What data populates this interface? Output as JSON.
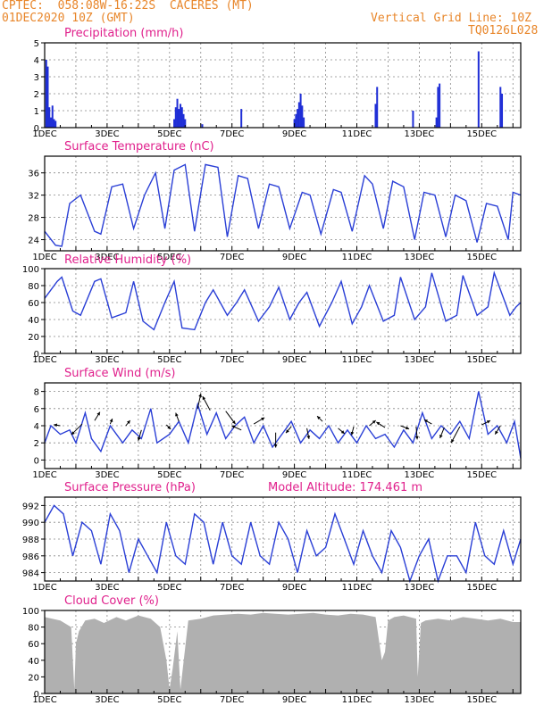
{
  "header": {
    "line1": "CPTEC:  058:08W-16:22S  CACERES (MT)",
    "line2": "01DEC2020 10Z (GMT)",
    "grid_note": "Vertical Grid Line: 10Z",
    "code": "TQ0126L028"
  },
  "colors": {
    "header": "#e8862a",
    "title": "#e0208c",
    "line": "#2a3fd6",
    "bar": "#1f2ed6",
    "cloud": "#b0b0b0",
    "arrow": "#000000"
  },
  "x_ticks": [
    "1DEC",
    "3DEC",
    "5DEC",
    "7DEC",
    "9DEC",
    "11DEC",
    "13DEC",
    "15DEC"
  ],
  "x_range_days": [
    0,
    15.25
  ],
  "chart_data": [
    {
      "type": "bar",
      "title": "Precipitation (mm/h)",
      "ylim": [
        0,
        5
      ],
      "yticks": [
        0,
        1,
        2,
        3,
        4,
        5
      ],
      "points": [
        [
          0.05,
          4
        ],
        [
          0.1,
          3.6
        ],
        [
          0.15,
          1.2
        ],
        [
          0.2,
          0.6
        ],
        [
          0.25,
          1.3
        ],
        [
          0.3,
          0.5
        ],
        [
          0.35,
          0.4
        ],
        [
          4.15,
          0.5
        ],
        [
          4.2,
          1.2
        ],
        [
          4.25,
          1.7
        ],
        [
          4.3,
          1.1
        ],
        [
          4.35,
          1.4
        ],
        [
          4.4,
          1.2
        ],
        [
          4.45,
          0.8
        ],
        [
          4.5,
          0.5
        ],
        [
          5.05,
          0.2
        ],
        [
          6.3,
          1.1
        ],
        [
          8.0,
          0.5
        ],
        [
          8.05,
          0.8
        ],
        [
          8.1,
          1.1
        ],
        [
          8.15,
          1.5
        ],
        [
          8.2,
          2.0
        ],
        [
          8.25,
          1.3
        ],
        [
          8.3,
          0.6
        ],
        [
          10.6,
          1.4
        ],
        [
          10.65,
          2.4
        ],
        [
          11.8,
          1.0
        ],
        [
          12.55,
          0.6
        ],
        [
          12.6,
          2.4
        ],
        [
          12.65,
          2.6
        ],
        [
          13.9,
          4.5
        ],
        [
          14.6,
          2.4
        ],
        [
          14.65,
          2.0
        ]
      ]
    },
    {
      "type": "line",
      "title": "Surface Temperature (nC)",
      "ylim": [
        22,
        39
      ],
      "yticks": [
        24,
        28,
        32,
        36
      ],
      "x": [
        0,
        0.35,
        0.55,
        0.8,
        1.15,
        1.6,
        1.8,
        2.15,
        2.5,
        2.85,
        3.2,
        3.55,
        3.85,
        4.15,
        4.5,
        4.8,
        5.15,
        5.55,
        5.85,
        6.2,
        6.5,
        6.85,
        7.2,
        7.5,
        7.85,
        8.25,
        8.5,
        8.85,
        9.25,
        9.5,
        9.85,
        10.25,
        10.5,
        10.85,
        11.15,
        11.5,
        11.85,
        12.15,
        12.5,
        12.85,
        13.15,
        13.5,
        13.85,
        14.15,
        14.5,
        14.85,
        15.0,
        15.25
      ],
      "y": [
        25.5,
        23.0,
        22.8,
        30.5,
        32.0,
        25.5,
        25.0,
        33.5,
        34.0,
        26.0,
        32.0,
        36.0,
        26.0,
        36.5,
        37.5,
        25.5,
        37.5,
        37.0,
        24.5,
        35.5,
        35.0,
        26.0,
        34.0,
        33.5,
        26.0,
        32.5,
        32.0,
        25.0,
        33.0,
        32.5,
        25.5,
        35.5,
        34.0,
        26.0,
        34.5,
        33.5,
        24.0,
        32.5,
        32.0,
        24.5,
        32.0,
        31.0,
        23.5,
        30.5,
        30.0,
        24.0,
        32.5,
        32.0
      ]
    },
    {
      "type": "line",
      "title": "Relative Humidity (%)",
      "ylim": [
        0,
        100
      ],
      "yticks": [
        0,
        20,
        40,
        60,
        80,
        100
      ],
      "x": [
        0,
        0.4,
        0.55,
        0.9,
        1.15,
        1.6,
        1.8,
        2.15,
        2.6,
        2.85,
        3.15,
        3.5,
        3.85,
        4.15,
        4.4,
        4.8,
        5.15,
        5.4,
        5.85,
        6.15,
        6.4,
        6.85,
        7.2,
        7.5,
        7.85,
        8.15,
        8.4,
        8.8,
        9.2,
        9.5,
        9.85,
        10.15,
        10.4,
        10.85,
        11.2,
        11.4,
        11.85,
        12.2,
        12.4,
        12.85,
        13.2,
        13.4,
        13.85,
        14.2,
        14.4,
        14.9,
        15.1,
        15.25
      ],
      "y": [
        65,
        85,
        90,
        50,
        45,
        85,
        88,
        42,
        48,
        85,
        38,
        28,
        60,
        85,
        30,
        28,
        60,
        75,
        45,
        60,
        75,
        38,
        55,
        78,
        40,
        60,
        72,
        32,
        60,
        85,
        35,
        55,
        80,
        38,
        45,
        90,
        40,
        55,
        95,
        38,
        45,
        92,
        45,
        55,
        95,
        45,
        55,
        60
      ]
    },
    {
      "type": "line",
      "title": "Surface Wind (m/s)",
      "ylim": [
        -1,
        9
      ],
      "yticks": [
        0,
        2,
        4,
        6,
        8
      ],
      "x": [
        0,
        0.2,
        0.5,
        0.8,
        1.0,
        1.3,
        1.5,
        1.8,
        2.1,
        2.5,
        2.8,
        3.1,
        3.4,
        3.6,
        4.0,
        4.3,
        4.6,
        4.9,
        5.2,
        5.5,
        5.8,
        6.1,
        6.4,
        6.7,
        7.0,
        7.3,
        7.6,
        7.9,
        8.2,
        8.5,
        8.8,
        9.1,
        9.4,
        9.7,
        10.0,
        10.3,
        10.6,
        10.9,
        11.2,
        11.5,
        11.8,
        12.1,
        12.4,
        12.7,
        13.0,
        13.3,
        13.6,
        13.9,
        14.2,
        14.5,
        14.8,
        15.05,
        15.25
      ],
      "y": [
        2.0,
        4.0,
        3.0,
        3.5,
        2.0,
        5.5,
        2.5,
        1.0,
        4.0,
        2.0,
        3.5,
        2.5,
        6.0,
        2.0,
        3.0,
        4.5,
        2.0,
        6.5,
        3.0,
        5.5,
        2.5,
        4.0,
        5.0,
        2.0,
        4.0,
        1.5,
        3.0,
        4.5,
        2.0,
        3.5,
        2.5,
        4.0,
        2.0,
        3.5,
        2.0,
        4.0,
        2.5,
        3.0,
        1.5,
        3.5,
        2.0,
        5.5,
        2.5,
        4.0,
        3.0,
        4.5,
        2.5,
        8.0,
        3.0,
        4.0,
        2.0,
        4.5,
        0.2
      ]
    },
    {
      "type": "line",
      "title": "Surface Pressure (hPa)",
      "annotation": "Model Altitude: 174.461 m",
      "ylim": [
        983,
        993
      ],
      "yticks": [
        984,
        986,
        988,
        990,
        992
      ],
      "x": [
        0,
        0.3,
        0.6,
        0.9,
        1.2,
        1.5,
        1.8,
        2.1,
        2.4,
        2.7,
        3.0,
        3.3,
        3.6,
        3.9,
        4.2,
        4.5,
        4.8,
        5.1,
        5.4,
        5.7,
        6.0,
        6.3,
        6.6,
        6.9,
        7.2,
        7.5,
        7.8,
        8.1,
        8.4,
        8.7,
        9.0,
        9.3,
        9.6,
        9.9,
        10.2,
        10.5,
        10.8,
        11.1,
        11.4,
        11.7,
        12.0,
        12.3,
        12.6,
        12.9,
        13.2,
        13.5,
        13.8,
        14.1,
        14.4,
        14.7,
        15.0,
        15.25
      ],
      "y": [
        990,
        992,
        991,
        986,
        990,
        989,
        985,
        991,
        989,
        984,
        988,
        986,
        984,
        990,
        986,
        985,
        991,
        990,
        985,
        990,
        986,
        985,
        990,
        986,
        985,
        990,
        988,
        984,
        989,
        986,
        987,
        991,
        988,
        985,
        989,
        986,
        984,
        989,
        987,
        983,
        986,
        988,
        983,
        986,
        986,
        984,
        990,
        986,
        985,
        989,
        985,
        988
      ]
    },
    {
      "type": "area",
      "title": "Cloud Cover (%)",
      "ylim": [
        0,
        100
      ],
      "yticks": [
        0,
        20,
        40,
        60,
        80,
        100
      ],
      "x": [
        0,
        0.5,
        0.85,
        0.95,
        1.0,
        1.1,
        1.3,
        1.6,
        1.9,
        2.3,
        2.6,
        3.0,
        3.4,
        3.7,
        3.9,
        4.0,
        4.1,
        4.25,
        4.35,
        4.6,
        5.0,
        5.4,
        5.8,
        6.2,
        6.6,
        7.0,
        7.4,
        7.8,
        8.2,
        8.6,
        9.0,
        9.4,
        9.8,
        10.2,
        10.6,
        10.8,
        10.9,
        11.0,
        11.2,
        11.5,
        11.9,
        11.95,
        12.05,
        12.2,
        12.6,
        13.0,
        13.4,
        13.8,
        14.2,
        14.6,
        15.0,
        15.25
      ],
      "y": [
        92,
        88,
        80,
        5,
        60,
        75,
        88,
        90,
        85,
        92,
        88,
        94,
        90,
        80,
        40,
        5,
        30,
        75,
        5,
        88,
        90,
        94,
        95,
        96,
        95,
        97,
        96,
        95,
        96,
        97,
        95,
        94,
        96,
        95,
        92,
        40,
        50,
        88,
        92,
        94,
        90,
        20,
        85,
        88,
        90,
        88,
        92,
        90,
        88,
        90,
        86,
        86
      ]
    }
  ],
  "wind_barbs": [
    [
      0.5,
      4.0,
      -0.6,
      0.1
    ],
    [
      1.2,
      4.2,
      -1.0,
      -1.0
    ],
    [
      1.6,
      4.6,
      0.5,
      0.8
    ],
    [
      2.1,
      4.2,
      0.2,
      0.5
    ],
    [
      2.6,
      4.0,
      0.4,
      0.5
    ],
    [
      3.1,
      3.5,
      -0.3,
      -1.0
    ],
    [
      3.9,
      4.1,
      0.4,
      -0.4
    ],
    [
      4.3,
      4.5,
      -0.3,
      0.8
    ],
    [
      4.9,
      6.0,
      0.3,
      1.4
    ],
    [
      5.3,
      5.8,
      -0.7,
      1.3
    ],
    [
      5.8,
      5.7,
      0.9,
      -1.2
    ],
    [
      6.3,
      3.5,
      -0.9,
      0.4
    ],
    [
      6.7,
      4.2,
      1.0,
      0.6
    ],
    [
      7.4,
      3.2,
      0.0,
      -1.4
    ],
    [
      7.9,
      3.9,
      -0.5,
      -0.6
    ],
    [
      8.4,
      3.7,
      0.2,
      -1.0
    ],
    [
      8.9,
      4.5,
      -0.5,
      0.5
    ],
    [
      9.4,
      3.7,
      0.6,
      -0.5
    ],
    [
      9.9,
      3.9,
      -0.2,
      -0.8
    ],
    [
      10.4,
      4.0,
      0.6,
      0.5
    ],
    [
      10.9,
      3.8,
      -0.8,
      0.5
    ],
    [
      11.4,
      4.0,
      0.8,
      -0.3
    ],
    [
      11.9,
      3.9,
      0.1,
      -1.2
    ],
    [
      12.4,
      4.2,
      -0.7,
      0.4
    ],
    [
      12.8,
      3.8,
      -0.4,
      -1.0
    ],
    [
      13.3,
      3.9,
      -0.8,
      -1.5
    ],
    [
      14.0,
      4.1,
      0.8,
      0.4
    ],
    [
      14.6,
      4.0,
      -0.5,
      -0.8
    ]
  ]
}
